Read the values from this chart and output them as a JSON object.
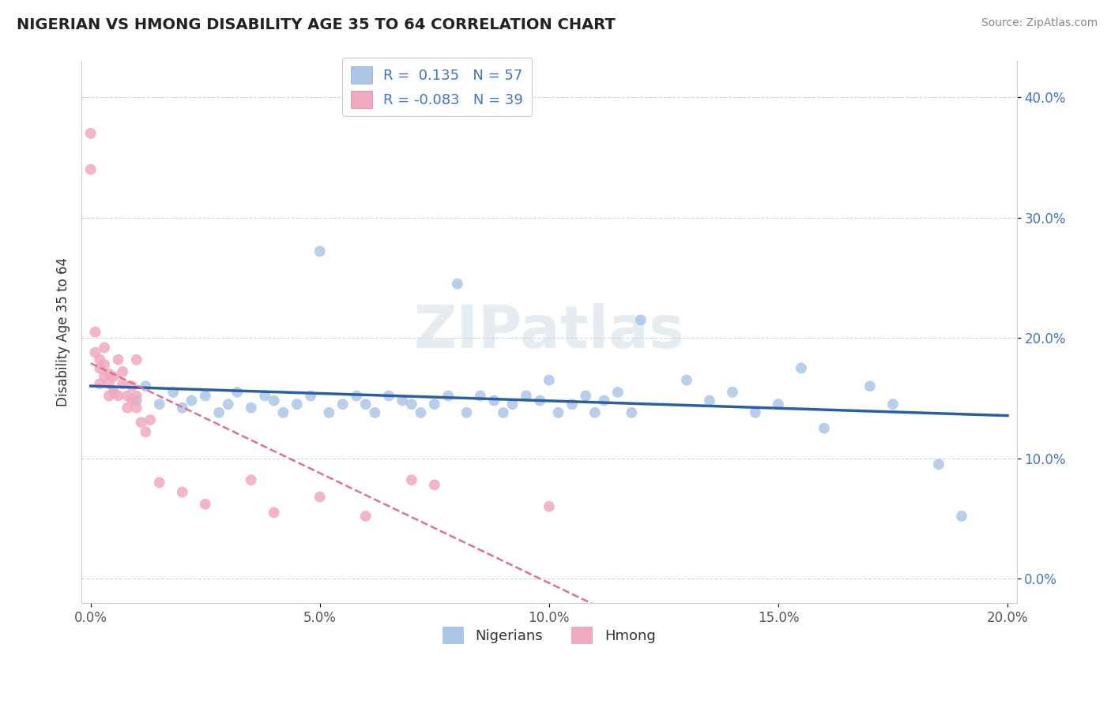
{
  "title": "NIGERIAN VS HMONG DISABILITY AGE 35 TO 64 CORRELATION CHART",
  "source": "Source: ZipAtlas.com",
  "ylabel": "Disability Age 35 to 64",
  "xlim": [
    -0.002,
    0.202
  ],
  "ylim": [
    -0.02,
    0.43
  ],
  "xticks": [
    0.0,
    0.05,
    0.1,
    0.15,
    0.2
  ],
  "xtick_labels": [
    "0.0%",
    "5.0%",
    "10.0%",
    "15.0%",
    "20.0%"
  ],
  "yticks": [
    0.0,
    0.1,
    0.2,
    0.3,
    0.4
  ],
  "ytick_labels": [
    "0.0%",
    "10.0%",
    "20.0%",
    "30.0%",
    "40.0%"
  ],
  "r_nigerian": 0.135,
  "n_nigerian": 57,
  "r_hmong": -0.083,
  "n_hmong": 39,
  "nigerian_color": "#adc6e8",
  "hmong_color": "#f0aabe",
  "nigerian_line_color": "#2a5fa5",
  "hmong_line_color": "#e07090",
  "watermark": "ZIPatlas",
  "grid_color": "#c8d8e8",
  "background_color": "#ffffff",
  "nigerian_x": [
    0.005,
    0.01,
    0.012,
    0.015,
    0.018,
    0.02,
    0.022,
    0.025,
    0.028,
    0.03,
    0.032,
    0.035,
    0.038,
    0.04,
    0.042,
    0.045,
    0.048,
    0.05,
    0.052,
    0.055,
    0.058,
    0.06,
    0.062,
    0.065,
    0.068,
    0.07,
    0.072,
    0.075,
    0.078,
    0.08,
    0.082,
    0.085,
    0.088,
    0.09,
    0.092,
    0.095,
    0.098,
    0.1,
    0.102,
    0.105,
    0.108,
    0.11,
    0.112,
    0.115,
    0.118,
    0.12,
    0.13,
    0.135,
    0.14,
    0.145,
    0.15,
    0.155,
    0.16,
    0.17,
    0.175,
    0.185,
    0.19
  ],
  "nigerian_y": [
    0.155,
    0.148,
    0.16,
    0.145,
    0.155,
    0.142,
    0.148,
    0.152,
    0.138,
    0.145,
    0.155,
    0.142,
    0.152,
    0.148,
    0.138,
    0.145,
    0.152,
    0.272,
    0.138,
    0.145,
    0.152,
    0.145,
    0.138,
    0.152,
    0.148,
    0.145,
    0.138,
    0.145,
    0.152,
    0.245,
    0.138,
    0.152,
    0.148,
    0.138,
    0.145,
    0.152,
    0.148,
    0.165,
    0.138,
    0.145,
    0.152,
    0.138,
    0.148,
    0.155,
    0.138,
    0.215,
    0.165,
    0.148,
    0.155,
    0.138,
    0.145,
    0.175,
    0.125,
    0.16,
    0.145,
    0.095,
    0.052
  ],
  "hmong_x": [
    0.0,
    0.0,
    0.001,
    0.001,
    0.002,
    0.002,
    0.002,
    0.003,
    0.003,
    0.003,
    0.004,
    0.004,
    0.004,
    0.005,
    0.005,
    0.006,
    0.006,
    0.007,
    0.007,
    0.008,
    0.008,
    0.009,
    0.009,
    0.01,
    0.01,
    0.01,
    0.011,
    0.012,
    0.013,
    0.015,
    0.02,
    0.025,
    0.035,
    0.04,
    0.05,
    0.06,
    0.075,
    0.1,
    0.07
  ],
  "hmong_y": [
    0.37,
    0.34,
    0.205,
    0.188,
    0.175,
    0.182,
    0.162,
    0.192,
    0.168,
    0.178,
    0.162,
    0.152,
    0.17,
    0.168,
    0.155,
    0.182,
    0.152,
    0.172,
    0.162,
    0.152,
    0.142,
    0.16,
    0.148,
    0.182,
    0.152,
    0.142,
    0.13,
    0.122,
    0.132,
    0.08,
    0.072,
    0.062,
    0.082,
    0.055,
    0.068,
    0.052,
    0.078,
    0.06,
    0.082
  ]
}
